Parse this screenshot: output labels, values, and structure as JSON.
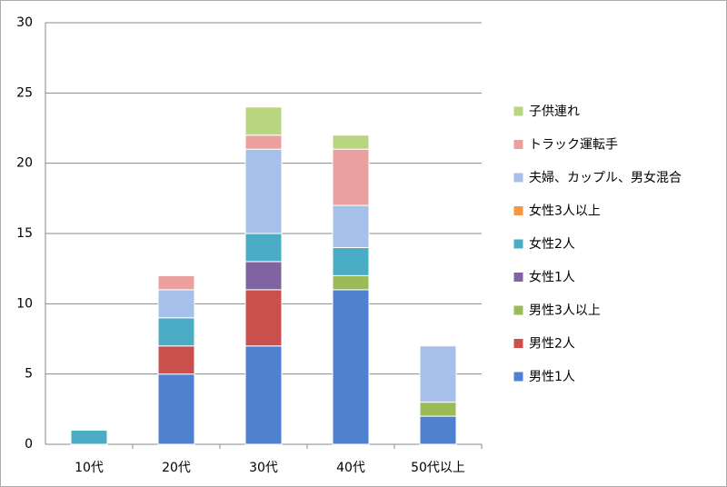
{
  "chart_data": {
    "type": "stacked-bar",
    "categories": [
      "10代",
      "20代",
      "30代",
      "40代",
      "50代以上"
    ],
    "series": [
      {
        "name": "男性1人",
        "color": "#4f81d0",
        "values": [
          0,
          5,
          7,
          11,
          2
        ]
      },
      {
        "name": "男性2人",
        "color": "#c9504d",
        "values": [
          0,
          2,
          4,
          0,
          0
        ]
      },
      {
        "name": "男性3人以上",
        "color": "#9bbb59",
        "values": [
          0,
          0,
          0,
          1,
          1
        ]
      },
      {
        "name": "女性1人",
        "color": "#8064a2",
        "values": [
          0,
          0,
          2,
          0,
          0
        ]
      },
      {
        "name": "女性2人",
        "color": "#4bacc6",
        "values": [
          1,
          2,
          2,
          2,
          0
        ]
      },
      {
        "name": "女性3人以上",
        "color": "#f79646",
        "values": [
          0,
          0,
          0,
          0,
          0
        ]
      },
      {
        "name": "夫婦、カップル、男女混合",
        "color": "#a7c0ea",
        "values": [
          0,
          2,
          6,
          3,
          4
        ]
      },
      {
        "name": "トラック運転手",
        "color": "#eba0a0",
        "values": [
          0,
          1,
          1,
          4,
          0
        ]
      },
      {
        "name": "子供連れ",
        "color": "#bad57f",
        "values": [
          0,
          0,
          2,
          1,
          0
        ]
      }
    ],
    "ylim": [
      0,
      30
    ],
    "yticks": [
      0,
      5,
      10,
      15,
      20,
      25,
      30
    ],
    "grid": true
  }
}
